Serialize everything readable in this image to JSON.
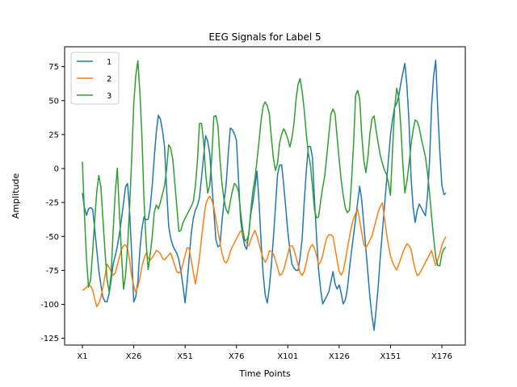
{
  "chart_data": {
    "type": "line",
    "title": "EEG Signals for Label 5",
    "xlabel": "Time Points",
    "ylabel": "Amplitude",
    "ylim": [
      -130,
      90
    ],
    "yticks": [
      -125,
      -100,
      -75,
      -50,
      -25,
      0,
      25,
      50,
      75
    ],
    "xticks": [
      "X1",
      "X26",
      "X51",
      "X76",
      "X101",
      "X126",
      "X151",
      "X176"
    ],
    "x_count": 178,
    "grid": false,
    "legend_position": "top-left",
    "series": [
      {
        "name": "1",
        "color": "#1f77b4",
        "keypoints": [
          [
            0,
            -18
          ],
          [
            2,
            -36
          ],
          [
            4,
            -28
          ],
          [
            6,
            -30
          ],
          [
            8,
            -55
          ],
          [
            10,
            -80
          ],
          [
            12,
            -95
          ],
          [
            14,
            -100
          ],
          [
            16,
            -90
          ],
          [
            18,
            -70
          ],
          [
            20,
            -60
          ],
          [
            22,
            -45
          ],
          [
            24,
            -25
          ],
          [
            26,
            -5
          ],
          [
            28,
            -40
          ],
          [
            30,
            -100
          ],
          [
            32,
            -90
          ],
          [
            34,
            -50
          ],
          [
            36,
            -35
          ],
          [
            38,
            -40
          ],
          [
            40,
            -25
          ],
          [
            42,
            10
          ],
          [
            44,
            40
          ],
          [
            46,
            35
          ],
          [
            48,
            15
          ],
          [
            50,
            -40
          ],
          [
            52,
            -55
          ],
          [
            54,
            -60
          ],
          [
            56,
            -65
          ],
          [
            58,
            -80
          ],
          [
            60,
            -100
          ],
          [
            62,
            -70
          ],
          [
            64,
            -40
          ],
          [
            66,
            -30
          ],
          [
            68,
            -25
          ],
          [
            70,
            0
          ],
          [
            72,
            26
          ],
          [
            74,
            15
          ],
          [
            76,
            -20
          ],
          [
            78,
            -55
          ],
          [
            80,
            -60
          ],
          [
            82,
            -30
          ],
          [
            84,
            -10
          ],
          [
            86,
            30
          ],
          [
            88,
            28
          ],
          [
            90,
            20
          ],
          [
            92,
            -35
          ],
          [
            94,
            -55
          ],
          [
            96,
            -60
          ],
          [
            98,
            -35
          ],
          [
            100,
            -20
          ],
          [
            102,
            0
          ],
          [
            104,
            -50
          ],
          [
            106,
            -90
          ],
          [
            108,
            -100
          ],
          [
            110,
            -75
          ],
          [
            112,
            -40
          ],
          [
            114,
            0
          ],
          [
            116,
            5
          ],
          [
            118,
            -20
          ],
          [
            120,
            -50
          ],
          [
            122,
            -70
          ],
          [
            124,
            -75
          ],
          [
            126,
            -75
          ],
          [
            128,
            -55
          ],
          [
            130,
            -10
          ],
          [
            132,
            20
          ],
          [
            134,
            12
          ],
          [
            136,
            -40
          ],
          [
            138,
            -80
          ],
          [
            140,
            -100
          ],
          [
            142,
            -95
          ],
          [
            144,
            -90
          ],
          [
            146,
            -75
          ],
          [
            148,
            -90
          ],
          [
            150,
            -85
          ],
          [
            152,
            -100
          ],
          [
            154,
            -95
          ],
          [
            156,
            -70
          ],
          [
            158,
            -50
          ],
          [
            160,
            -30
          ],
          [
            162,
            -10
          ],
          [
            164,
            -40
          ],
          [
            166,
            -70
          ],
          [
            168,
            -100
          ],
          [
            170,
            -120
          ],
          [
            172,
            -95
          ],
          [
            174,
            -60
          ],
          [
            176,
            -30
          ],
          [
            178,
            0
          ],
          [
            180,
            30
          ],
          [
            182,
            45
          ],
          [
            184,
            50
          ],
          [
            186,
            65
          ],
          [
            188,
            78
          ],
          [
            190,
            50
          ],
          [
            192,
            -20
          ],
          [
            194,
            -40
          ],
          [
            196,
            -25
          ],
          [
            198,
            -30
          ],
          [
            200,
            -35
          ],
          [
            202,
            -10
          ],
          [
            204,
            60
          ],
          [
            206,
            80
          ],
          [
            208,
            20
          ],
          [
            210,
            -20
          ],
          [
            212,
            -18
          ]
        ]
      },
      {
        "name": "2",
        "color": "#ff7f0e",
        "keypoints": [
          [
            0,
            -90
          ],
          [
            2,
            -88
          ],
          [
            4,
            -85
          ],
          [
            6,
            -90
          ],
          [
            8,
            -102
          ],
          [
            10,
            -98
          ],
          [
            12,
            -85
          ],
          [
            14,
            -70
          ],
          [
            16,
            -75
          ],
          [
            18,
            -80
          ],
          [
            20,
            -70
          ],
          [
            22,
            -60
          ],
          [
            24,
            -55
          ],
          [
            26,
            -60
          ],
          [
            28,
            -80
          ],
          [
            30,
            -92
          ],
          [
            32,
            -85
          ],
          [
            34,
            -70
          ],
          [
            36,
            -62
          ],
          [
            38,
            -68
          ],
          [
            40,
            -65
          ],
          [
            42,
            -60
          ],
          [
            44,
            -62
          ],
          [
            46,
            -68
          ],
          [
            48,
            -65
          ],
          [
            50,
            -62
          ],
          [
            52,
            -70
          ],
          [
            54,
            -78
          ],
          [
            56,
            -75
          ],
          [
            58,
            -65
          ],
          [
            60,
            -55
          ],
          [
            62,
            -70
          ],
          [
            64,
            -85
          ],
          [
            66,
            -70
          ],
          [
            68,
            -45
          ],
          [
            70,
            -25
          ],
          [
            72,
            -20
          ],
          [
            74,
            -25
          ],
          [
            76,
            -40
          ],
          [
            78,
            -55
          ],
          [
            80,
            -68
          ],
          [
            82,
            -70
          ],
          [
            84,
            -60
          ],
          [
            86,
            -55
          ],
          [
            88,
            -50
          ],
          [
            90,
            -45
          ],
          [
            92,
            -52
          ],
          [
            94,
            -58
          ],
          [
            96,
            -50
          ],
          [
            98,
            -45
          ],
          [
            100,
            -55
          ],
          [
            102,
            -65
          ],
          [
            104,
            -70
          ],
          [
            106,
            -60
          ],
          [
            108,
            -62
          ],
          [
            110,
            -70
          ],
          [
            112,
            -80
          ],
          [
            114,
            -75
          ],
          [
            116,
            -65
          ],
          [
            118,
            -55
          ],
          [
            120,
            -60
          ],
          [
            122,
            -70
          ],
          [
            124,
            -80
          ],
          [
            126,
            -75
          ],
          [
            128,
            -62
          ],
          [
            130,
            -55
          ],
          [
            132,
            -60
          ],
          [
            134,
            -72
          ],
          [
            136,
            -65
          ],
          [
            138,
            -52
          ],
          [
            140,
            -48
          ],
          [
            142,
            -50
          ],
          [
            144,
            -65
          ],
          [
            146,
            -80
          ],
          [
            148,
            -75
          ],
          [
            150,
            -60
          ],
          [
            152,
            -45
          ],
          [
            154,
            -35
          ],
          [
            156,
            -30
          ],
          [
            158,
            -45
          ],
          [
            160,
            -60
          ],
          [
            162,
            -55
          ],
          [
            164,
            -50
          ],
          [
            166,
            -40
          ],
          [
            168,
            -30
          ],
          [
            170,
            -25
          ],
          [
            172,
            -45
          ],
          [
            174,
            -62
          ],
          [
            176,
            -70
          ],
          [
            178,
            -75
          ],
          [
            180,
            -68
          ],
          [
            182,
            -60
          ],
          [
            184,
            -55
          ],
          [
            186,
            -58
          ],
          [
            188,
            -72
          ],
          [
            190,
            -80
          ],
          [
            192,
            -75
          ],
          [
            194,
            -70
          ],
          [
            196,
            -65
          ],
          [
            198,
            -60
          ],
          [
            200,
            -72
          ],
          [
            202,
            -65
          ],
          [
            204,
            -55
          ],
          [
            206,
            -50
          ]
        ]
      },
      {
        "name": "3",
        "color": "#2ca02c",
        "keypoints": [
          [
            0,
            5
          ],
          [
            2,
            -60
          ],
          [
            4,
            -95
          ],
          [
            6,
            -60
          ],
          [
            8,
            -20
          ],
          [
            10,
            0
          ],
          [
            12,
            -40
          ],
          [
            14,
            -80
          ],
          [
            16,
            -95
          ],
          [
            18,
            -40
          ],
          [
            20,
            5
          ],
          [
            22,
            -50
          ],
          [
            24,
            -95
          ],
          [
            26,
            -60
          ],
          [
            28,
            -10
          ],
          [
            30,
            60
          ],
          [
            32,
            80
          ],
          [
            34,
            40
          ],
          [
            36,
            -40
          ],
          [
            38,
            -75
          ],
          [
            40,
            -55
          ],
          [
            42,
            -25
          ],
          [
            44,
            -30
          ],
          [
            46,
            -20
          ],
          [
            48,
            -10
          ],
          [
            50,
            20
          ],
          [
            52,
            10
          ],
          [
            54,
            -20
          ],
          [
            56,
            -50
          ],
          [
            58,
            -40
          ],
          [
            60,
            -35
          ],
          [
            62,
            -30
          ],
          [
            64,
            -25
          ],
          [
            66,
            -5
          ],
          [
            68,
            42
          ],
          [
            70,
            20
          ],
          [
            72,
            -20
          ],
          [
            74,
            -10
          ],
          [
            76,
            40
          ],
          [
            78,
            38
          ],
          [
            80,
            -5
          ],
          [
            82,
            -25
          ],
          [
            84,
            -35
          ],
          [
            86,
            -20
          ],
          [
            88,
            -10
          ],
          [
            90,
            -15
          ],
          [
            92,
            -40
          ],
          [
            94,
            -55
          ],
          [
            96,
            -50
          ],
          [
            98,
            -20
          ],
          [
            100,
            -5
          ],
          [
            102,
            20
          ],
          [
            104,
            45
          ],
          [
            106,
            50
          ],
          [
            108,
            40
          ],
          [
            110,
            10
          ],
          [
            112,
            -5
          ],
          [
            114,
            20
          ],
          [
            116,
            30
          ],
          [
            118,
            25
          ],
          [
            120,
            15
          ],
          [
            122,
            30
          ],
          [
            124,
            60
          ],
          [
            126,
            67
          ],
          [
            128,
            45
          ],
          [
            130,
            15
          ],
          [
            132,
            0
          ],
          [
            134,
            -30
          ],
          [
            136,
            -40
          ],
          [
            138,
            -20
          ],
          [
            140,
            -5
          ],
          [
            142,
            20
          ],
          [
            144,
            46
          ],
          [
            146,
            40
          ],
          [
            148,
            10
          ],
          [
            150,
            -15
          ],
          [
            152,
            -30
          ],
          [
            154,
            -35
          ],
          [
            156,
            0
          ],
          [
            158,
            60
          ],
          [
            160,
            55
          ],
          [
            162,
            10
          ],
          [
            164,
            -5
          ],
          [
            166,
            25
          ],
          [
            168,
            43
          ],
          [
            170,
            25
          ],
          [
            172,
            10
          ],
          [
            174,
            0
          ],
          [
            176,
            -5
          ],
          [
            178,
            -20
          ],
          [
            180,
            40
          ],
          [
            182,
            65
          ],
          [
            184,
            30
          ],
          [
            186,
            -20
          ],
          [
            188,
            -5
          ],
          [
            190,
            20
          ],
          [
            192,
            36
          ],
          [
            194,
            34
          ],
          [
            196,
            20
          ],
          [
            198,
            10
          ],
          [
            200,
            -10
          ],
          [
            202,
            -40
          ],
          [
            204,
            -65
          ],
          [
            206,
            -75
          ],
          [
            208,
            -60
          ],
          [
            210,
            -58
          ]
        ]
      }
    ]
  }
}
